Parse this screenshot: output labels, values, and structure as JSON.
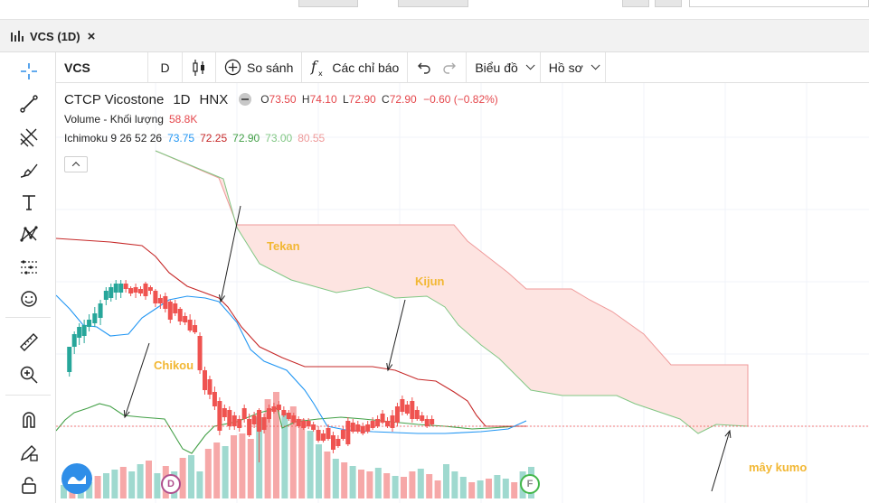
{
  "tab": {
    "title": "VCS (1D)",
    "close": "×"
  },
  "toolbar": {
    "symbol": "VCS",
    "interval": "D",
    "compare": "So sánh",
    "indicators": "Các chỉ báo",
    "chart_label": "Biểu đồ",
    "profile_label": "Hồ sơ"
  },
  "legend": {
    "name": "CTCP Vicostone",
    "interval": "1D",
    "exchange": "HNX",
    "ohlc": {
      "o_key": "O",
      "o": "73.50",
      "h_key": "H",
      "h": "74.10",
      "l_key": "L",
      "l": "72.90",
      "c_key": "C",
      "c": "72.90",
      "chg": "−0.60 (−0.82%)"
    },
    "volume_label": "Volume - Khối lượng",
    "volume_value": "58.8K",
    "ichimoku_label": "Ichimoku 9 26 52 26",
    "ichimoku_values": [
      "73.75",
      "72.25",
      "72.90",
      "73.00",
      "80.55"
    ]
  },
  "annotations": {
    "tekan": "Tekan",
    "kijun": "Kijun",
    "chikou": "Chikou",
    "kumo": "mây kumo"
  },
  "markers": {
    "dividend": "D",
    "earnings": "F"
  },
  "colors": {
    "up": "#26a69a",
    "down": "#ef5350",
    "tenkan": "#2196f3",
    "kijun": "#c62828",
    "chikou": "#43a047",
    "spanA": "#81c784",
    "spanB": "#ef9a9a",
    "cloud": "#fde4e1",
    "annotation": "#f2b733"
  },
  "icons": {
    "crosshair": "crosshair-icon",
    "trendline": "trend-line-icon",
    "fib": "fib-icon",
    "brush": "brush-icon",
    "text": "text-icon",
    "pattern": "pattern-icon",
    "ruler": "ruler-icon",
    "zoom": "zoom-in-icon",
    "magnet": "magnet-icon",
    "lock": "lock-icon",
    "smile": "smile-icon",
    "pencil": "pencil-lock-icon"
  }
}
